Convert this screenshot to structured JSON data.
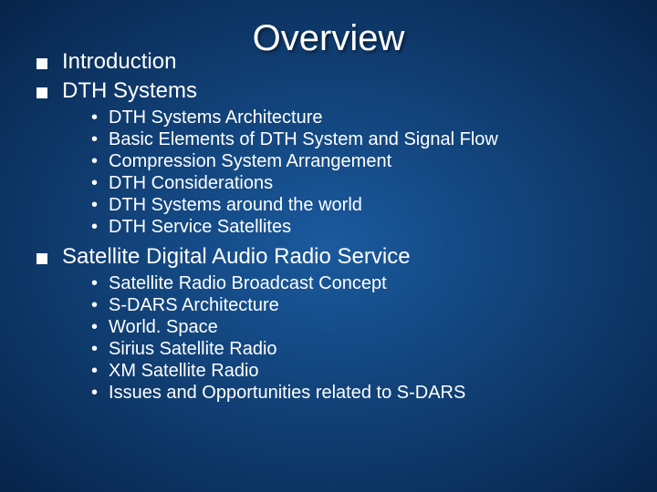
{
  "slide": {
    "background_gradient": {
      "type": "radial",
      "center_color": "#1a5a9e",
      "edge_color": "#07244a"
    },
    "title": {
      "text": "Overview",
      "color": "#ffffff",
      "fontsize": 40
    },
    "text_color": "#ffffff",
    "lvl1_fontsize": 24,
    "lvl2_fontsize": 20,
    "lvl1_bullet_color": "#ffffff",
    "lvl2_bullet_glyph": "•",
    "items": [
      {
        "level": 1,
        "text": "Introduction"
      },
      {
        "level": 1,
        "text": "DTH Systems"
      },
      {
        "level": 2,
        "text": "DTH Systems Architecture"
      },
      {
        "level": 2,
        "text": "Basic Elements of DTH System and Signal Flow"
      },
      {
        "level": 2,
        "text": "Compression System Arrangement"
      },
      {
        "level": 2,
        "text": "DTH Considerations"
      },
      {
        "level": 2,
        "text": "DTH Systems around the world"
      },
      {
        "level": 2,
        "text": "DTH Service Satellites"
      },
      {
        "level": 1,
        "text": "Satellite Digital Audio Radio Service"
      },
      {
        "level": 2,
        "text": "Satellite Radio Broadcast Concept"
      },
      {
        "level": 2,
        "text": "S-DARS Architecture"
      },
      {
        "level": 2,
        "text": "World. Space"
      },
      {
        "level": 2,
        "text": "Sirius Satellite Radio"
      },
      {
        "level": 2,
        "text": "XM Satellite Radio"
      },
      {
        "level": 2,
        "text": "Issues and Opportunities related to S-DARS"
      }
    ]
  }
}
